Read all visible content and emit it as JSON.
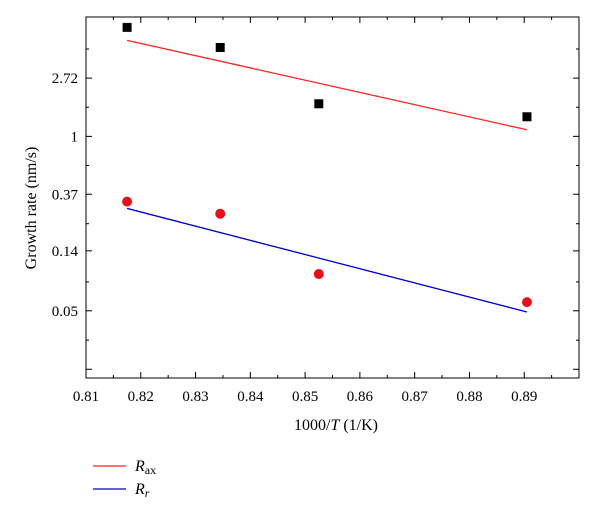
{
  "chart_data": {
    "type": "scatter",
    "xlabel": {
      "prefix": "1000/",
      "italic": "T",
      "suffix": " (1/K)"
    },
    "ylabel": "Growth rate (nm/s)",
    "xlim": [
      0.81,
      0.9
    ],
    "x_ticks": [
      0.81,
      0.82,
      0.83,
      0.84,
      0.85,
      0.86,
      0.87,
      0.88,
      0.89
    ],
    "x_tick_labels": [
      "0.81",
      "0.82",
      "0.83",
      "0.84",
      "0.85",
      "0.86",
      "0.87",
      "0.88",
      "0.89"
    ],
    "y_scale": "log",
    "y_log_base": "e",
    "ylim_ln": [
      -4.15,
      2.05
    ],
    "y_ticks": [
      0.05,
      0.14,
      0.37,
      1,
      2.72
    ],
    "y_tick_labels": [
      "0.05",
      "0.14",
      "0.37",
      "1",
      "2.72"
    ],
    "grid": false,
    "legend_position": "below-left",
    "series": [
      {
        "name_main": "R",
        "name_sub": "ax",
        "color": "#e8101a",
        "marker": "square",
        "marker_color": "#000000",
        "line_color": "#ff2020",
        "x": [
          0.8175,
          0.8345,
          0.8525,
          0.8905
        ],
        "y": [
          6.5,
          4.6,
          1.75,
          1.4
        ],
        "fit": {
          "x": [
            0.8175,
            0.8905
          ],
          "y": [
            5.2,
            1.12
          ]
        }
      },
      {
        "name_main": "R",
        "name_sub": "r",
        "color": "#e8101a",
        "marker": "circle",
        "marker_color": "#e8101a",
        "line_color": "#0000cc",
        "x": [
          0.8175,
          0.8345,
          0.8525,
          0.8905
        ],
        "y": [
          0.326,
          0.265,
          0.094,
          0.058
        ],
        "fit": {
          "x": [
            0.8175,
            0.8905
          ],
          "y": [
            0.29,
            0.049
          ]
        }
      }
    ]
  }
}
